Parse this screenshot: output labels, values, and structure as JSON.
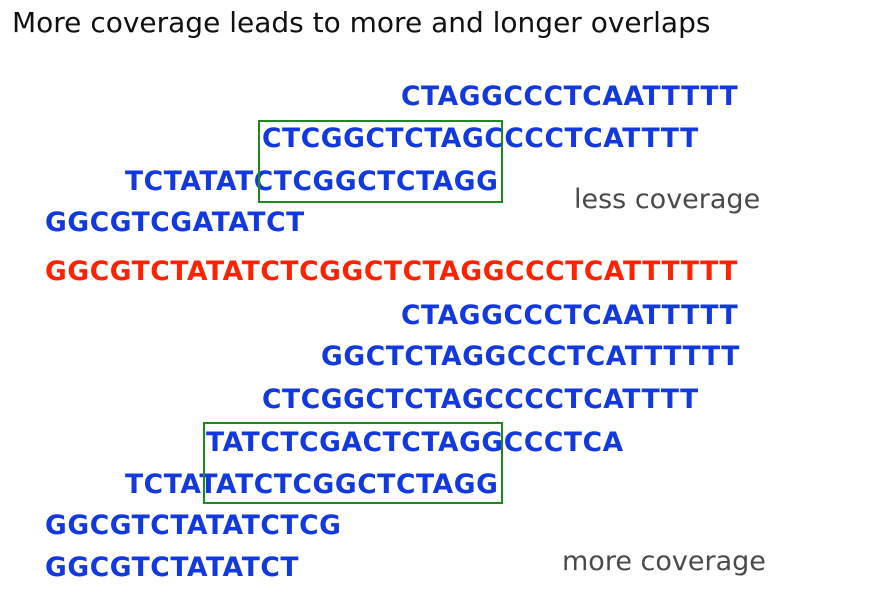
{
  "title": "More coverage leads to more and longer overlaps",
  "top_reads": [
    "CTAGGCCCTCAATTTTT",
    "CTCGGCTCTAGCCCCTCATTTT",
    "TCTATATCTCGGCTCTAGG",
    "GGCGTCGATATCT"
  ],
  "reference": "GGCGTCTATATCTCGGCTCTAGGCCCTCATTTTTT",
  "bottom_reads": [
    "CTAGGCCCTCAATTTTT",
    "GGCTCTAGGCCCTCATTTTTT",
    "CTCGGCTCTAGCCCCTCATTTT",
    "TATCTCGACTCTAGGCCCTCA",
    "TCTATATCTCGGCTCTAGG",
    "GGCGTCTATATCTCG",
    "GGCGTCTATATCT"
  ],
  "labels": {
    "less": "less coverage",
    "more": "more coverage"
  },
  "colors": {
    "reads": "#1238e0",
    "reference": "#ff2200",
    "overlap_box": "#1c8a1c",
    "label": "#4a4a4a"
  }
}
